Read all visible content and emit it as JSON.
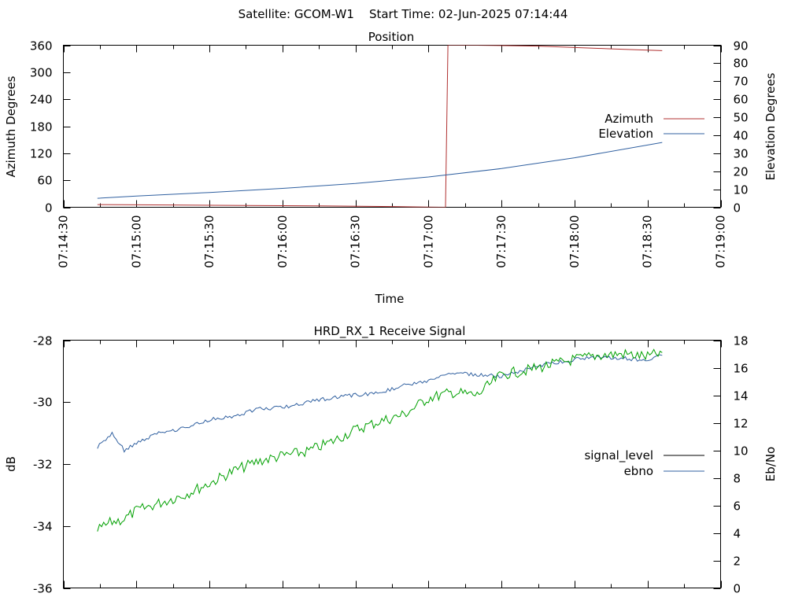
{
  "header": "Satellite: GCOM-W1    Start Time: 02-Jun-2025 07:14:44",
  "chart_data": [
    {
      "type": "line",
      "title": "Position",
      "xlabel": "Time",
      "ylabel": "Azimuth Degrees",
      "y2label": "Elevation Degrees",
      "x_ticks": [
        "07:14:30",
        "07:15:00",
        "07:15:30",
        "07:16:00",
        "07:16:30",
        "07:17:00",
        "07:17:30",
        "07:18:00",
        "07:18:30",
        "07:19:00"
      ],
      "xlim": [
        "07:14:30",
        "07:19:00"
      ],
      "ylim": [
        0,
        360
      ],
      "y2lim": [
        0,
        90
      ],
      "y_ticks": [
        0,
        60,
        120,
        180,
        240,
        300,
        360
      ],
      "y2_ticks": [
        0,
        10,
        20,
        30,
        40,
        50,
        60,
        70,
        80,
        90
      ],
      "legend_position": "right",
      "series": [
        {
          "name": "Azimuth",
          "axis": "left",
          "color": "#b03030",
          "points": [
            [
              "07:14:44",
              6
            ],
            [
              "07:15:15",
              5
            ],
            [
              "07:15:45",
              4
            ],
            [
              "07:16:15",
              3
            ],
            [
              "07:16:45",
              1.5
            ],
            [
              "07:16:59",
              0.5
            ],
            [
              "07:17:07",
              0
            ],
            [
              "07:17:08",
              360
            ],
            [
              "07:17:20",
              360
            ],
            [
              "07:17:45",
              358
            ],
            [
              "07:18:15",
              352
            ],
            [
              "07:18:36",
              348
            ]
          ]
        },
        {
          "name": "Elevation",
          "axis": "right",
          "color": "#3060a0",
          "points": [
            [
              "07:14:44",
              5
            ],
            [
              "07:15:00",
              6.2
            ],
            [
              "07:15:30",
              8.2
            ],
            [
              "07:16:00",
              10.5
            ],
            [
              "07:16:30",
              13.2
            ],
            [
              "07:17:00",
              16.8
            ],
            [
              "07:17:30",
              21.5
            ],
            [
              "07:18:00",
              27.5
            ],
            [
              "07:18:36",
              36
            ]
          ]
        }
      ]
    },
    {
      "type": "line",
      "title": "HRD_RX_1 Receive Signal",
      "xlabel": "",
      "ylabel": "dB",
      "y2label": "Eb/No",
      "xlim": [
        "07:14:30",
        "07:19:00"
      ],
      "ylim": [
        -36,
        -28
      ],
      "y2lim": [
        0,
        18
      ],
      "y_ticks": [
        -36,
        -34,
        -32,
        -30,
        -28
      ],
      "y2_ticks": [
        0,
        2,
        4,
        6,
        8,
        10,
        12,
        14,
        16,
        18
      ],
      "legend_position": "right",
      "series": [
        {
          "name": "signal_level",
          "axis": "left",
          "color": "#000000",
          "points": []
        },
        {
          "name": "ebno",
          "axis": "right",
          "color": "#3060a0",
          "points": [
            [
              "07:14:44",
              10.2
            ],
            [
              "07:14:50",
              11.2
            ],
            [
              "07:14:55",
              10.0
            ],
            [
              "07:15:00",
              10.5
            ],
            [
              "07:15:10",
              11.3
            ],
            [
              "07:15:20",
              11.6
            ],
            [
              "07:15:30",
              12.2
            ],
            [
              "07:15:40",
              12.5
            ],
            [
              "07:15:50",
              13.0
            ],
            [
              "07:16:00",
              13.1
            ],
            [
              "07:16:10",
              13.5
            ],
            [
              "07:16:20",
              13.8
            ],
            [
              "07:16:30",
              14.0
            ],
            [
              "07:16:40",
              14.2
            ],
            [
              "07:16:50",
              14.7
            ],
            [
              "07:17:00",
              15.0
            ],
            [
              "07:17:10",
              15.6
            ],
            [
              "07:17:20",
              15.5
            ],
            [
              "07:17:30",
              15.4
            ],
            [
              "07:17:40",
              15.9
            ],
            [
              "07:17:50",
              16.3
            ],
            [
              "07:18:00",
              16.6
            ],
            [
              "07:18:10",
              16.8
            ],
            [
              "07:18:20",
              16.7
            ],
            [
              "07:18:30",
              16.5
            ],
            [
              "07:18:36",
              16.9
            ]
          ]
        },
        {
          "name": "",
          "axis": "right",
          "color": "#00a000",
          "points": [
            [
              "07:14:44",
              4.2
            ],
            [
              "07:14:50",
              4.8
            ],
            [
              "07:14:55",
              5.0
            ],
            [
              "07:15:00",
              5.6
            ],
            [
              "07:15:10",
              6.2
            ],
            [
              "07:15:20",
              6.8
            ],
            [
              "07:15:30",
              7.6
            ],
            [
              "07:15:40",
              8.5
            ],
            [
              "07:15:50",
              9.2
            ],
            [
              "07:16:00",
              9.6
            ],
            [
              "07:16:10",
              9.9
            ],
            [
              "07:16:20",
              10.6
            ],
            [
              "07:16:30",
              11.5
            ],
            [
              "07:16:40",
              12.1
            ],
            [
              "07:16:50",
              12.6
            ],
            [
              "07:17:00",
              13.8
            ],
            [
              "07:17:10",
              14.2
            ],
            [
              "07:17:20",
              14.0
            ],
            [
              "07:17:30",
              15.5
            ],
            [
              "07:17:40",
              15.8
            ],
            [
              "07:17:50",
              16.2
            ],
            [
              "07:18:00",
              16.6
            ],
            [
              "07:18:10",
              16.9
            ],
            [
              "07:18:20",
              17.0
            ],
            [
              "07:18:30",
              16.8
            ],
            [
              "07:18:36",
              17.1
            ]
          ]
        }
      ]
    }
  ]
}
